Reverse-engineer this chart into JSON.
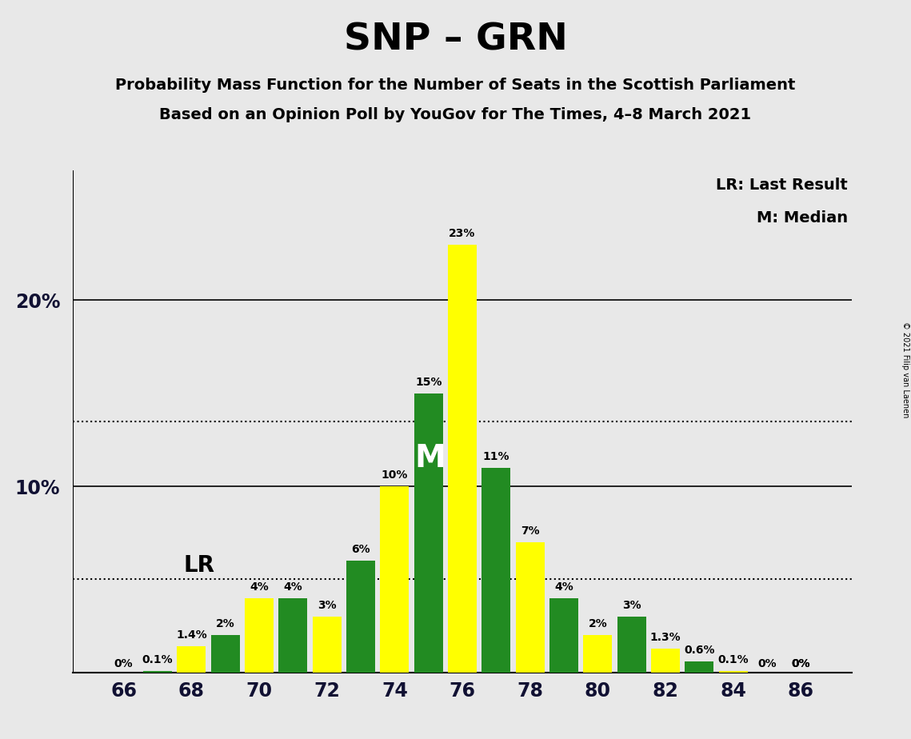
{
  "title": "SNP – GRN",
  "subtitle1": "Probability Mass Function for the Number of Seats in the Scottish Parliament",
  "subtitle2": "Based on an Opinion Poll by YouGov for The Times, 4–8 March 2021",
  "copyright": "© 2021 Filip van Laenen",
  "seats": [
    66,
    67,
    68,
    69,
    70,
    71,
    72,
    73,
    74,
    75,
    76,
    77,
    78,
    79,
    80,
    81,
    82,
    83,
    84,
    85,
    86
  ],
  "yellow_values": [
    0.0,
    0.0,
    1.4,
    0.0,
    4.0,
    0.0,
    3.0,
    0.0,
    10.0,
    0.0,
    23.0,
    0.0,
    7.0,
    0.0,
    2.0,
    0.0,
    1.3,
    0.0,
    0.1,
    0.0,
    0.0
  ],
  "green_values": [
    0.0,
    0.1,
    0.0,
    2.0,
    0.0,
    4.0,
    0.0,
    6.0,
    0.0,
    15.0,
    0.0,
    11.0,
    0.0,
    4.0,
    0.0,
    3.0,
    0.0,
    0.6,
    0.0,
    0.0,
    0.0
  ],
  "yellow_labels": [
    "0%",
    "",
    "1.4%",
    "",
    "4%",
    "",
    "3%",
    "",
    "10%",
    "",
    "23%",
    "",
    "7%",
    "",
    "2%",
    "",
    "1.3%",
    "",
    "0.1%",
    "",
    "0%"
  ],
  "green_labels": [
    "",
    "0.1%",
    "",
    "2%",
    "",
    "4%",
    "",
    "6%",
    "",
    "15%",
    "",
    "11%",
    "",
    "4%",
    "",
    "3%",
    "",
    "0.6%",
    "",
    "0%",
    "0%"
  ],
  "yellow_color": "#FFFF00",
  "green_color": "#228B22",
  "background_color": "#E8E8E8",
  "plot_background": "#E8E8E8",
  "last_result_seat": 69,
  "median_seat": 75,
  "lr_label": "LR",
  "median_label": "M",
  "dotted_line1": 5.0,
  "dotted_line2": 13.5,
  "ylim_max": 27,
  "bar_width": 0.85,
  "legend_lr": "LR: Last Result",
  "legend_m": "M: Median"
}
